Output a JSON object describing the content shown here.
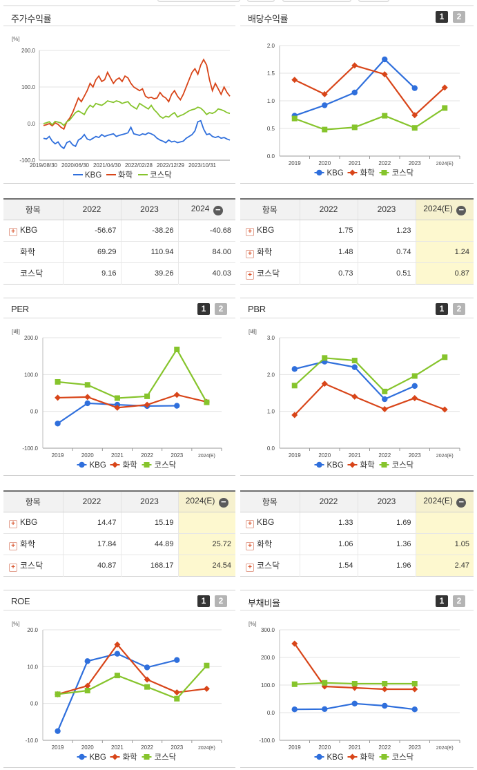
{
  "colors": {
    "kbg": "#2f6fdc",
    "chem": "#d84519",
    "kosdaq": "#86c42c"
  },
  "stock": {
    "title": "주가수익률",
    "unit": "[%]",
    "yticks": [
      "200.0",
      "100.0",
      "0.0",
      "-100.0"
    ],
    "xticks": [
      "2019/08/30",
      "2020/06/30",
      "2021/04/30",
      "2022/02/28",
      "2022/12/29",
      "2023/10/31"
    ],
    "legend": [
      "KBG",
      "화학",
      "코스닥"
    ],
    "chart_data": {
      "type": "line",
      "ylim": [
        -100,
        200
      ],
      "series": [
        {
          "name": "KBG",
          "values": [
            -40,
            -42,
            -35,
            -48,
            -55,
            -50,
            -62,
            -68,
            -52,
            -48,
            -58,
            -62,
            -45,
            -40,
            -30,
            -42,
            -45,
            -40,
            -35,
            -38,
            -30,
            -35,
            -32,
            -30,
            -28,
            -35,
            -32,
            -30,
            -28,
            -25,
            -10,
            -28,
            -30,
            -32,
            -28,
            -30,
            -25,
            -28,
            -32,
            -40,
            -45,
            -48,
            -52,
            -45,
            -50,
            -48,
            -52,
            -50,
            -48,
            -40,
            -35,
            -30,
            -20,
            5,
            8,
            -15,
            -30,
            -28,
            -35,
            -38,
            -35,
            -40,
            -38,
            -42,
            -45
          ]
        },
        {
          "name": "화학",
          "values": [
            -5,
            -3,
            0,
            -6,
            2,
            -2,
            -10,
            -15,
            5,
            15,
            30,
            50,
            70,
            60,
            75,
            90,
            110,
            100,
            120,
            130,
            115,
            120,
            140,
            125,
            110,
            120,
            125,
            115,
            130,
            125,
            110,
            100,
            95,
            90,
            95,
            75,
            70,
            72,
            68,
            70,
            85,
            75,
            70,
            60,
            80,
            90,
            75,
            65,
            80,
            100,
            120,
            140,
            150,
            135,
            160,
            175,
            160,
            120,
            90,
            110,
            95,
            80,
            100,
            85,
            75
          ]
        },
        {
          "name": "코스닥",
          "values": [
            0,
            2,
            5,
            -3,
            6,
            4,
            2,
            -5,
            5,
            10,
            20,
            30,
            35,
            30,
            25,
            40,
            50,
            45,
            55,
            52,
            50,
            55,
            62,
            60,
            58,
            62,
            60,
            55,
            58,
            60,
            50,
            45,
            40,
            55,
            50,
            45,
            40,
            50,
            38,
            30,
            20,
            15,
            20,
            18,
            25,
            30,
            18,
            22,
            25,
            30,
            35,
            38,
            40,
            45,
            42,
            35,
            25,
            30,
            28,
            32,
            40,
            38,
            35,
            30,
            28
          ]
        }
      ]
    }
  },
  "dividend": {
    "title": "배당수익률",
    "btn1": "1",
    "btn2": "2",
    "yticks": [
      "2.0",
      "1.5",
      "1.0",
      "0.5",
      "0.0"
    ],
    "xticks": [
      "2019",
      "2020",
      "2021",
      "2022",
      "2023",
      "2024(E)"
    ],
    "legend": [
      "KBG",
      "화학",
      "코스닥"
    ],
    "chart_data": {
      "type": "line",
      "categories": [
        "2019",
        "2020",
        "2021",
        "2022",
        "2023",
        "2024(E)"
      ],
      "ylim": [
        0,
        2
      ],
      "series": [
        {
          "name": "KBG",
          "values": [
            0.73,
            0.92,
            1.15,
            1.75,
            1.23,
            null
          ]
        },
        {
          "name": "화학",
          "values": [
            1.38,
            1.12,
            1.64,
            1.48,
            0.74,
            1.24
          ]
        },
        {
          "name": "코스닥",
          "values": [
            0.68,
            0.48,
            0.52,
            0.73,
            0.51,
            0.87
          ]
        }
      ]
    }
  },
  "stock_table": {
    "headers": [
      "항목",
      "2022",
      "2023",
      "2024"
    ],
    "rows": [
      {
        "label": "KBG",
        "plus": true,
        "v": [
          "-56.67",
          "-38.26",
          "-40.68"
        ]
      },
      {
        "label": "화학",
        "plus": false,
        "v": [
          "69.29",
          "110.94",
          "84.00"
        ]
      },
      {
        "label": "코스닥",
        "plus": false,
        "v": [
          "9.16",
          "39.26",
          "40.03"
        ]
      }
    ]
  },
  "dividend_table": {
    "headers": [
      "항목",
      "2022",
      "2023",
      "2024(E)"
    ],
    "rows": [
      {
        "label": "KBG",
        "plus": true,
        "v": [
          "1.75",
          "1.23",
          ""
        ]
      },
      {
        "label": "화학",
        "plus": true,
        "v": [
          "1.48",
          "0.74",
          "1.24"
        ]
      },
      {
        "label": "코스닥",
        "plus": true,
        "v": [
          "0.73",
          "0.51",
          "0.87"
        ]
      }
    ]
  },
  "per": {
    "title": "PER",
    "btn1": "1",
    "btn2": "2",
    "unit": "[배]",
    "yticks": [
      "200.0",
      "100.0",
      "0.0",
      "-100.0"
    ],
    "xticks": [
      "2019",
      "2020",
      "2021",
      "2022",
      "2023",
      "2024(E)"
    ],
    "legend": [
      "KBG",
      "화학",
      "코스닥"
    ],
    "chart_data": {
      "type": "line",
      "categories": [
        "2019",
        "2020",
        "2021",
        "2022",
        "2023",
        "2024(E)"
      ],
      "ylim": [
        -100,
        200
      ],
      "series": [
        {
          "name": "KBG",
          "values": [
            -33,
            22,
            18,
            14.47,
            15.19,
            null
          ]
        },
        {
          "name": "화학",
          "values": [
            37,
            39,
            10,
            17.84,
            44.89,
            25.72
          ]
        },
        {
          "name": "코스닥",
          "values": [
            80,
            72,
            36,
            40.87,
            168.17,
            24.54
          ]
        }
      ]
    }
  },
  "pbr": {
    "title": "PBR",
    "btn1": "1",
    "btn2": "2",
    "unit": "[배]",
    "yticks": [
      "3.0",
      "2.0",
      "1.0",
      "0.0"
    ],
    "xticks": [
      "2019",
      "2020",
      "2021",
      "2022",
      "2023",
      "2024(E)"
    ],
    "legend": [
      "KBG",
      "화학",
      "코스닥"
    ],
    "chart_data": {
      "type": "line",
      "categories": [
        "2019",
        "2020",
        "2021",
        "2022",
        "2023",
        "2024(E)"
      ],
      "ylim": [
        0,
        3
      ],
      "series": [
        {
          "name": "KBG",
          "values": [
            2.15,
            2.35,
            2.2,
            1.33,
            1.69,
            null
          ]
        },
        {
          "name": "화학",
          "values": [
            0.9,
            1.75,
            1.4,
            1.06,
            1.36,
            1.05
          ]
        },
        {
          "name": "코스닥",
          "values": [
            1.7,
            2.45,
            2.38,
            1.54,
            1.96,
            2.47
          ]
        }
      ]
    }
  },
  "per_table": {
    "headers": [
      "항목",
      "2022",
      "2023",
      "2024(E)"
    ],
    "rows": [
      {
        "label": "KBG",
        "plus": true,
        "v": [
          "14.47",
          "15.19",
          ""
        ]
      },
      {
        "label": "화학",
        "plus": true,
        "v": [
          "17.84",
          "44.89",
          "25.72"
        ]
      },
      {
        "label": "코스닥",
        "plus": true,
        "v": [
          "40.87",
          "168.17",
          "24.54"
        ]
      }
    ]
  },
  "pbr_table": {
    "headers": [
      "항목",
      "2022",
      "2023",
      "2024(E)"
    ],
    "rows": [
      {
        "label": "KBG",
        "plus": true,
        "v": [
          "1.33",
          "1.69",
          ""
        ]
      },
      {
        "label": "화학",
        "plus": true,
        "v": [
          "1.06",
          "1.36",
          "1.05"
        ]
      },
      {
        "label": "코스닥",
        "plus": true,
        "v": [
          "1.54",
          "1.96",
          "2.47"
        ]
      }
    ]
  },
  "roe": {
    "title": "ROE",
    "btn1": "1",
    "btn2": "2",
    "unit": "[%]",
    "yticks": [
      "20.0",
      "10.0",
      "0.0",
      "-10.0"
    ],
    "xticks": [
      "2019",
      "2020",
      "2021",
      "2022",
      "2023",
      "2024(E)"
    ],
    "legend": [
      "KBG",
      "화학",
      "코스닥"
    ],
    "chart_data": {
      "type": "line",
      "categories": [
        "2019",
        "2020",
        "2021",
        "2022",
        "2023",
        "2024(E)"
      ],
      "ylim": [
        -10,
        20
      ],
      "series": [
        {
          "name": "KBG",
          "values": [
            -7.5,
            11.5,
            13.5,
            9.8,
            11.8,
            null
          ]
        },
        {
          "name": "화학",
          "values": [
            2.5,
            4.8,
            16,
            6.5,
            3,
            4
          ]
        },
        {
          "name": "코스닥",
          "values": [
            2.5,
            3.5,
            7.6,
            4.5,
            1.3,
            10.3
          ]
        }
      ]
    }
  },
  "debt": {
    "title": "부채비율",
    "btn1": "1",
    "btn2": "2",
    "unit": "[%]",
    "yticks": [
      "300.0",
      "200.0",
      "100.0",
      "0.0",
      "-100.0"
    ],
    "xticks": [
      "2019",
      "2020",
      "2021",
      "2022",
      "2023",
      "2024(E)"
    ],
    "legend": [
      "KBG",
      "화학",
      "코스닥"
    ],
    "chart_data": {
      "type": "line",
      "categories": [
        "2019",
        "2020",
        "2021",
        "2022",
        "2023",
        "2024(E)"
      ],
      "ylim": [
        -100,
        300
      ],
      "series": [
        {
          "name": "KBG",
          "values": [
            12,
            13,
            33,
            25,
            12,
            null
          ]
        },
        {
          "name": "화학",
          "values": [
            250,
            95,
            90,
            85,
            85,
            null
          ]
        },
        {
          "name": "코스닥",
          "values": [
            103,
            108,
            105,
            105,
            105,
            null
          ]
        }
      ]
    }
  }
}
